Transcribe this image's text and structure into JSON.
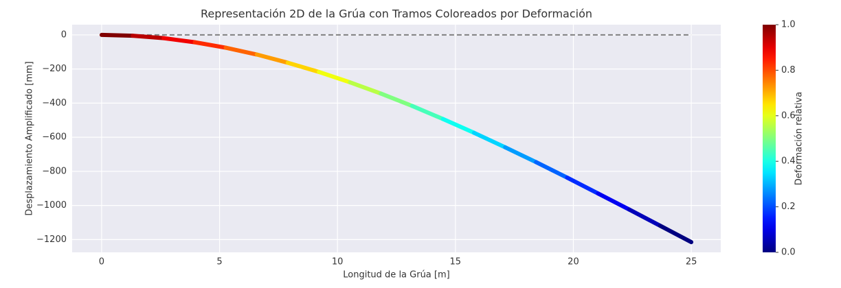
{
  "chart_data": {
    "type": "colored_segments",
    "title": "Representación 2D de la Grúa con Tramos Coloreados por Deformación",
    "xlabel": "Longitud de la Grúa [m]",
    "ylabel": "Desplazamiento Amplificado [mm]",
    "x": [
      0,
      1.32,
      2.63,
      3.95,
      5.26,
      6.58,
      7.89,
      9.21,
      10.53,
      11.84,
      13.16,
      14.47,
      15.79,
      17.11,
      18.42,
      19.74,
      21.05,
      22.37,
      23.68,
      25
    ],
    "y": [
      0,
      -5,
      -19,
      -43,
      -75,
      -115,
      -163,
      -217,
      -278,
      -344,
      -416,
      -493,
      -574,
      -659,
      -746,
      -837,
      -930,
      -1024,
      -1119,
      -1215
    ],
    "deformation": [
      1,
      0.944,
      0.889,
      0.833,
      0.778,
      0.722,
      0.667,
      0.611,
      0.556,
      0.5,
      0.444,
      0.389,
      0.333,
      0.278,
      0.222,
      0.167,
      0.111,
      0.056,
      0
    ],
    "undeformed": {
      "x": [
        0,
        25
      ],
      "y": [
        0,
        0
      ],
      "color": "#808080"
    },
    "colormap": "jet",
    "xlim": [
      -1.25,
      26.25
    ],
    "ylim": [
      -1275,
      60
    ],
    "xticks": [
      0,
      5,
      10,
      15,
      20,
      25
    ],
    "yticks": [
      {
        "value": -1200,
        "label": "−1200"
      },
      {
        "value": -1000,
        "label": "−1000"
      },
      {
        "value": -800,
        "label": "−800"
      },
      {
        "value": -600,
        "label": "−600"
      },
      {
        "value": -400,
        "label": "−400"
      },
      {
        "value": -200,
        "label": "−200"
      },
      0
    ],
    "grid": true,
    "colorbar": {
      "label": "Deformación relativa",
      "lim": [
        0,
        1
      ],
      "ticks": [
        {
          "value": 0,
          "label": "0.0"
        },
        0.2,
        0.4,
        0.6,
        0.8,
        {
          "value": 1,
          "label": "1.0"
        }
      ]
    }
  }
}
